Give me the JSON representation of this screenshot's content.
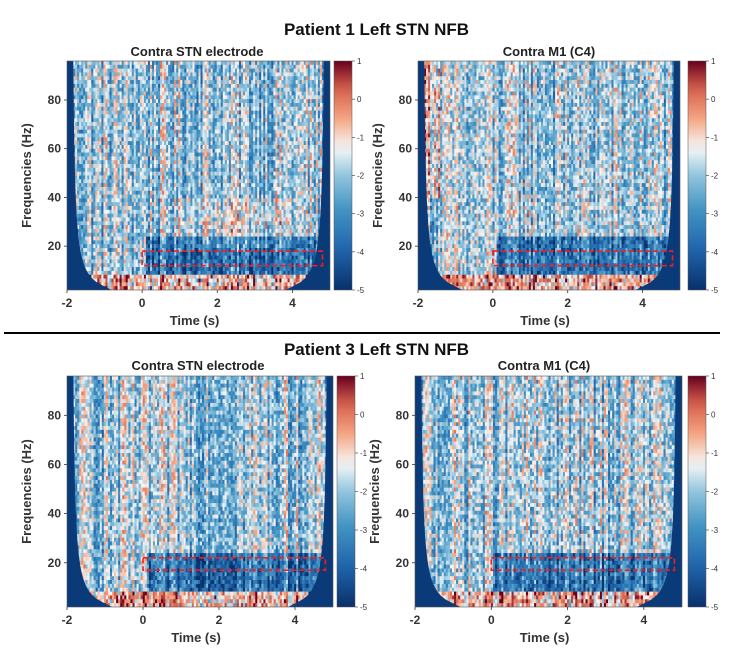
{
  "titles": {
    "top": "Patient 1 Left STN NFB",
    "bottom": "Patient 3 Left STN NFB"
  },
  "chart_data": [
    {
      "type": "heatmap",
      "title": "Contra STN electrode",
      "xlabel": "Time (s)",
      "ylabel": "Frequencies (Hz)",
      "xlim": [
        -2,
        5
      ],
      "ylim": [
        2,
        96
      ],
      "xticks": [
        -2,
        0,
        2,
        4
      ],
      "yticks": [
        20,
        40,
        60,
        80
      ],
      "colorbar": {
        "range": [
          -5,
          1
        ],
        "ticks": [
          1,
          0,
          -1,
          -2,
          -3,
          -4,
          -5
        ]
      },
      "highlight_box": {
        "x": [
          0,
          4.8
        ],
        "y": [
          12,
          18
        ]
      }
    },
    {
      "type": "heatmap",
      "title": "Contra M1 (C4)",
      "xlabel": "Time (s)",
      "ylabel": "Frequencies (Hz)",
      "xlim": [
        -2,
        5
      ],
      "ylim": [
        2,
        96
      ],
      "xticks": [
        -2,
        0,
        2,
        4
      ],
      "yticks": [
        20,
        40,
        60,
        80
      ],
      "colorbar": {
        "range": [
          -5,
          1
        ],
        "ticks": [
          1,
          0,
          -1,
          -2,
          -3,
          -4,
          -5
        ]
      },
      "highlight_box": {
        "x": [
          0,
          4.8
        ],
        "y": [
          12,
          18
        ]
      }
    },
    {
      "type": "heatmap",
      "title": "Contra STN electrode",
      "xlabel": "Time (s)",
      "ylabel": "Frequencies (Hz)",
      "xlim": [
        -2,
        5
      ],
      "ylim": [
        2,
        96
      ],
      "xticks": [
        -2,
        0,
        2,
        4
      ],
      "yticks": [
        20,
        40,
        60,
        80
      ],
      "colorbar": {
        "range": [
          -5,
          1
        ],
        "ticks": [
          1,
          0,
          -1,
          -2,
          -3,
          -4,
          -5
        ]
      },
      "highlight_box": {
        "x": [
          0,
          4.8
        ],
        "y": [
          17,
          22
        ]
      }
    },
    {
      "type": "heatmap",
      "title": "Contra M1 (C4)",
      "xlabel": "Time (s)",
      "ylabel": "Frequencies (Hz)",
      "xlim": [
        -2,
        5
      ],
      "ylim": [
        2,
        96
      ],
      "xticks": [
        -2,
        0,
        2,
        4
      ],
      "yticks": [
        20,
        40,
        60,
        80
      ],
      "colorbar": {
        "range": [
          -5,
          1
        ],
        "ticks": [
          1,
          0,
          -1,
          -2,
          -3,
          -4,
          -5
        ]
      },
      "highlight_box": {
        "x": [
          0,
          4.8
        ],
        "y": [
          17,
          22
        ]
      }
    }
  ]
}
